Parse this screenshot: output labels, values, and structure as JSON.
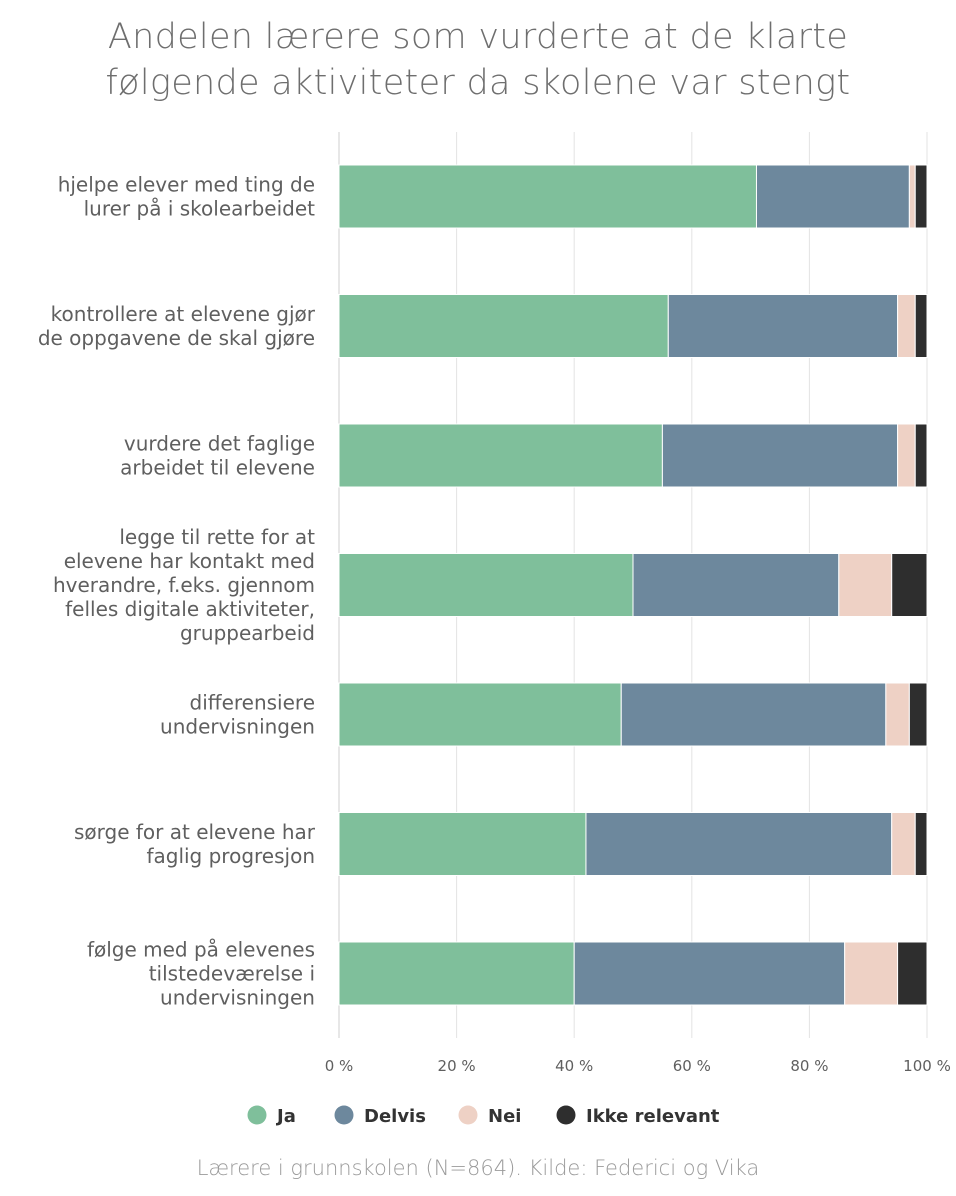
{
  "title_lines": [
    "Andelen lærere som vurderte at de klarte",
    "følgende aktiviteter da skolene var stengt"
  ],
  "footer": "Lærere i grunnskolen (N=864). Kilde: Federici og Vika",
  "colors": {
    "Ja": "#7fbf9b",
    "Delvis": "#6d889d",
    "Nei": "#eed1c5",
    "Ikke relevant": "#2e2e2e",
    "grid": "#e3e3e3",
    "axis": "#cfcfcf",
    "label": "#5f5f5f"
  },
  "chart_data": {
    "type": "bar",
    "orientation": "horizontal",
    "stacked": true,
    "title": "Andelen lærere som vurderte at de klarte følgende aktiviteter da skolene var stengt",
    "xlabel": "",
    "ylabel": "",
    "xlim": [
      0,
      100
    ],
    "x_ticks": [
      "0 %",
      "20 %",
      "40 %",
      "60 %",
      "80 %",
      "100 %"
    ],
    "legend_position": "bottom",
    "categories": [
      [
        "hjelpe elever med ting de",
        "lurer på i skolearbeidet"
      ],
      [
        "kontrollere at elevene gjør",
        "de oppgavene de skal gjøre"
      ],
      [
        "vurdere det faglige",
        "arbeidet til elevene"
      ],
      [
        "legge til rette for at",
        "elevene har kontakt med",
        "hverandre, f.eks. gjennom",
        "felles digitale aktiviteter,",
        "gruppearbeid"
      ],
      [
        "differensiere",
        "undervisningen"
      ],
      [
        "sørge for at elevene har",
        "faglig progresjon"
      ],
      [
        "følge med på elevenes",
        "tilstedeværelse i",
        "undervisningen"
      ]
    ],
    "series": [
      {
        "name": "Ja",
        "values": [
          71,
          56,
          55,
          50,
          48,
          42,
          40
        ]
      },
      {
        "name": "Delvis",
        "values": [
          26,
          39,
          40,
          35,
          45,
          52,
          46
        ]
      },
      {
        "name": "Nei",
        "values": [
          1,
          3,
          3,
          9,
          4,
          4,
          9
        ]
      },
      {
        "name": "Ikke relevant",
        "values": [
          2,
          2,
          2,
          6,
          3,
          2,
          5
        ]
      }
    ]
  }
}
